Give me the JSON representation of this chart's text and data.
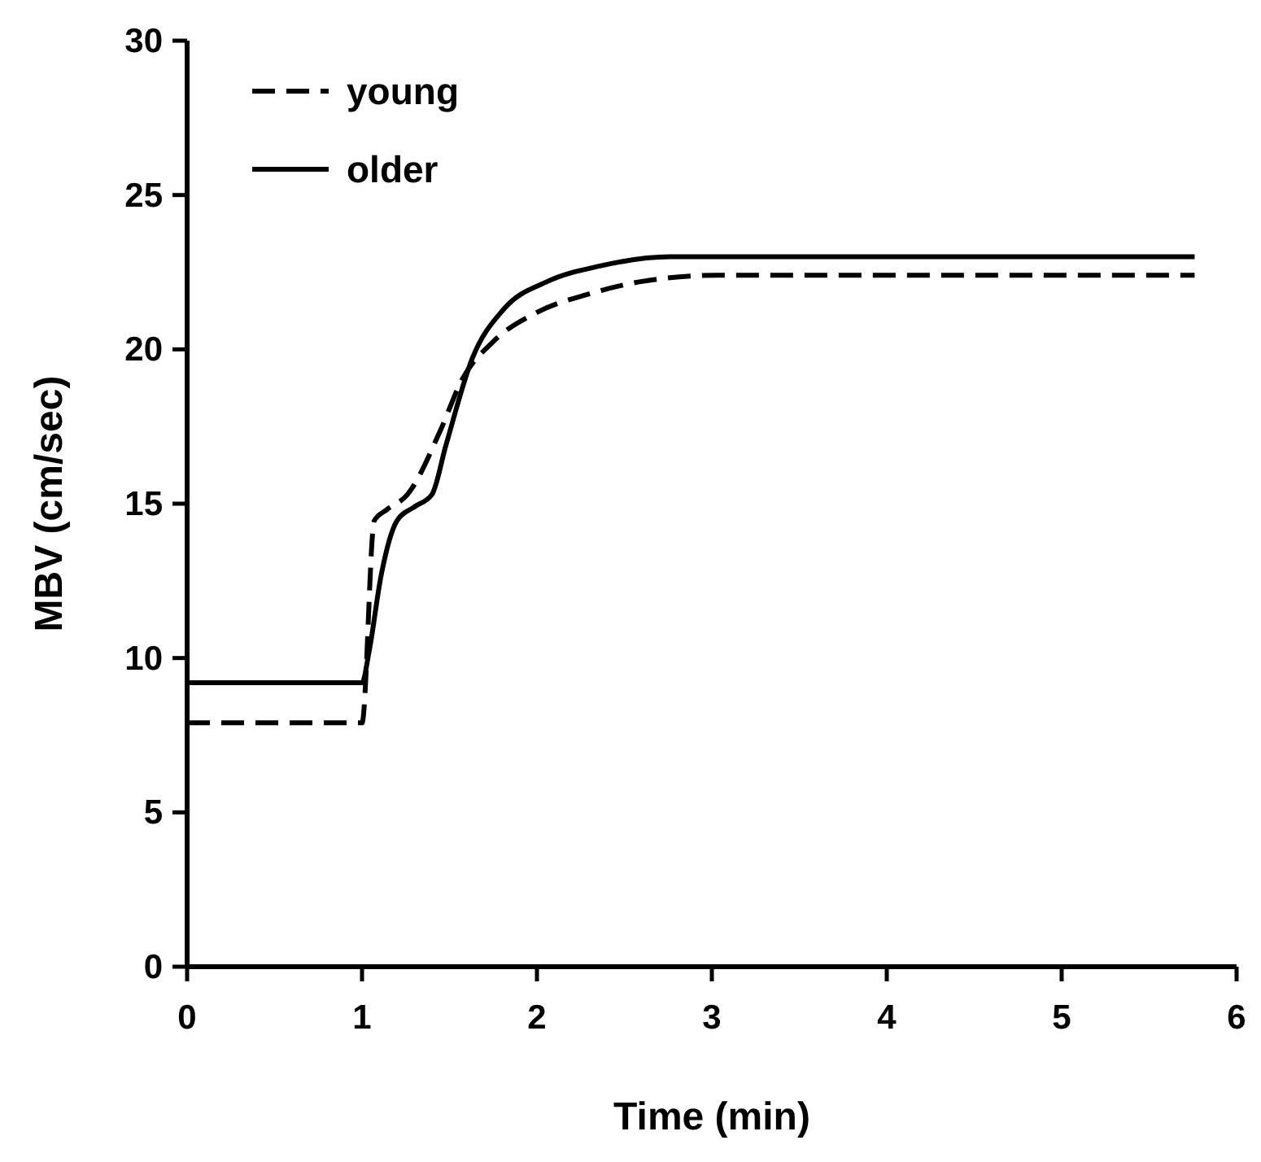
{
  "chart_data": {
    "type": "line",
    "xlabel": "Time (min)",
    "ylabel": "MBV (cm/sec)",
    "xlim": [
      0,
      6
    ],
    "ylim": [
      0,
      30
    ],
    "xticks": [
      0,
      1,
      2,
      3,
      4,
      5,
      6
    ],
    "yticks": [
      0,
      5,
      10,
      15,
      20,
      25,
      30
    ],
    "grid": false,
    "legend": "top left",
    "series": [
      {
        "name": "young",
        "color": "#000000",
        "line_style": "dashed",
        "x": [
          0,
          1,
          1.07,
          1.14,
          1.26,
          1.45,
          1.57,
          1.75,
          2.0,
          2.3,
          2.6,
          3.03,
          4,
          5,
          5.76
        ],
        "values": [
          7.9,
          7.9,
          14.45,
          14.8,
          15.3,
          17.4,
          19.0,
          20.25,
          21.2,
          21.8,
          22.2,
          22.4,
          22.4,
          22.4,
          22.4
        ]
      },
      {
        "name": "older",
        "color": "#000000",
        "line_style": "solid",
        "x": [
          0,
          1,
          1.04,
          1.11,
          1.2,
          1.3,
          1.4,
          1.48,
          1.63,
          1.81,
          2.06,
          2.36,
          2.76,
          4,
          5,
          5.76
        ],
        "values": [
          9.2,
          9.2,
          10.2,
          12.7,
          14.45,
          14.9,
          15.3,
          16.9,
          19.7,
          21.3,
          22.2,
          22.7,
          23.0,
          23.0,
          23.0,
          23.0
        ]
      }
    ]
  }
}
